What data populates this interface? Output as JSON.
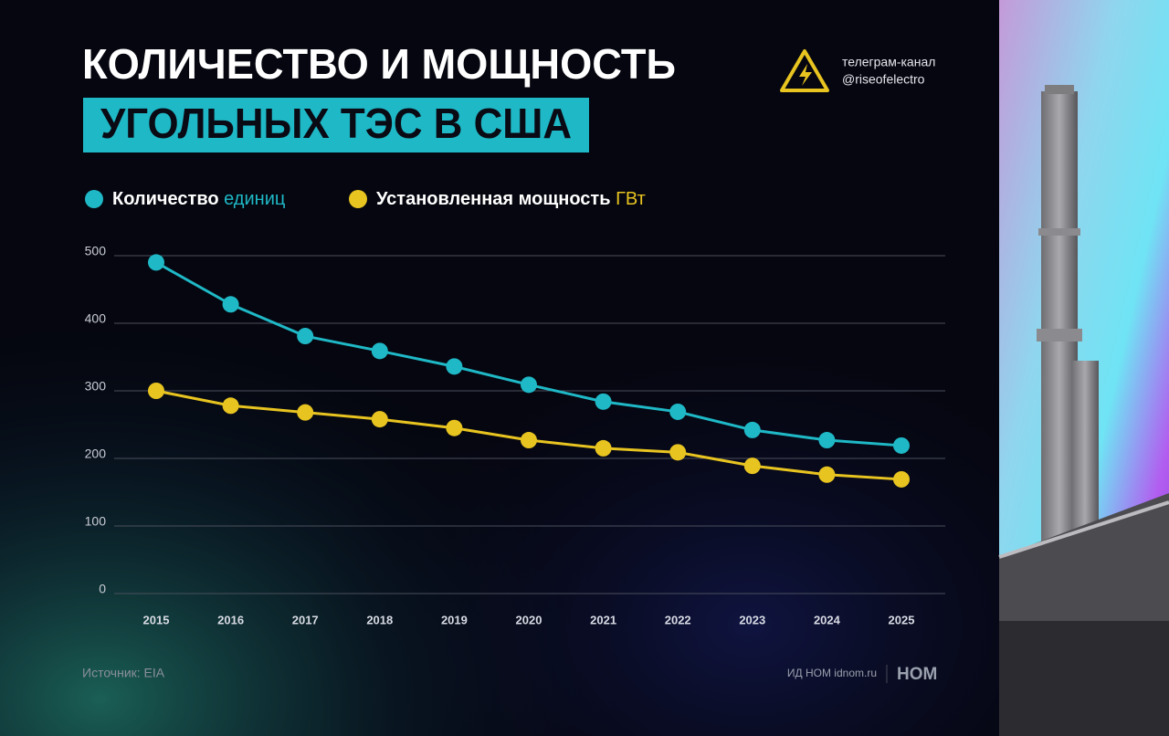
{
  "header": {
    "title_line1": "КОЛИЧЕСТВО И МОЩНОСТЬ",
    "title_line2": "УГОЛЬНЫХ ТЭС В США",
    "channel_label": "телеграм-канал",
    "channel_handle": "@riseofelectro"
  },
  "chart_data": {
    "type": "line",
    "categories": [
      "2015",
      "2016",
      "2017",
      "2018",
      "2019",
      "2020",
      "2021",
      "2022",
      "2023",
      "2024",
      "2025"
    ],
    "series": [
      {
        "name": "Количество",
        "unit": "единиц",
        "color": "#1fb8c6",
        "values": [
          490,
          428,
          381,
          359,
          336,
          309,
          284,
          269,
          242,
          227,
          219
        ]
      },
      {
        "name": "Установленная мощность",
        "unit": "ГВт",
        "color": "#e8c420",
        "values": [
          300,
          278,
          268,
          258,
          245,
          227,
          215,
          209,
          189,
          176,
          169
        ]
      }
    ],
    "ylim": [
      0,
      500
    ],
    "yticks": [
      0,
      100,
      200,
      300,
      400,
      500
    ],
    "grid": true
  },
  "footer": {
    "source": "Источник: EIA",
    "publisher": "ИД НОМ idnom.ru",
    "logo": "НОМ"
  }
}
